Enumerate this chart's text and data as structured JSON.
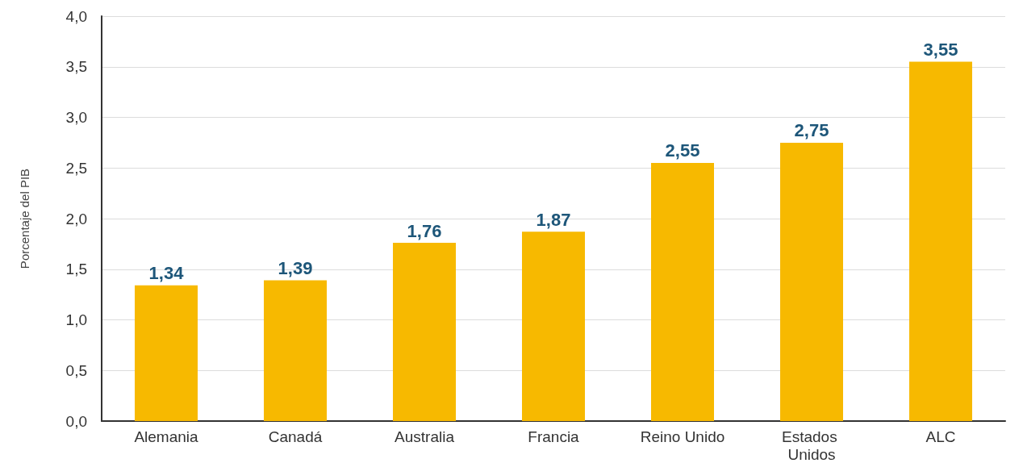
{
  "chart_data": {
    "type": "bar",
    "ylabel": "Porcentaje del PIB",
    "categories": [
      "Alemania",
      "Canadá",
      "Australia",
      "Francia",
      "Reino Unido",
      "Estados Unidos",
      "ALC"
    ],
    "values": [
      1.34,
      1.39,
      1.76,
      1.87,
      2.55,
      2.75,
      3.55
    ],
    "value_labels": [
      "1,34",
      "1,39",
      "1,76",
      "1,87",
      "2,55",
      "2,75",
      "3,55"
    ],
    "color": "#f7b900",
    "ylim": [
      0,
      4
    ],
    "yticks": [
      {
        "value": 0,
        "label": "0,0"
      },
      {
        "value": 0.5,
        "label": "0,5"
      },
      {
        "value": 1,
        "label": "1,0"
      },
      {
        "value": 1.5,
        "label": "1,5"
      },
      {
        "value": 2,
        "label": "2,0"
      },
      {
        "value": 2.5,
        "label": "2,5"
      },
      {
        "value": 3,
        "label": "3,0"
      },
      {
        "value": 3.5,
        "label": "3,5"
      },
      {
        "value": 4,
        "label": "4,0"
      }
    ],
    "grid": "y"
  }
}
